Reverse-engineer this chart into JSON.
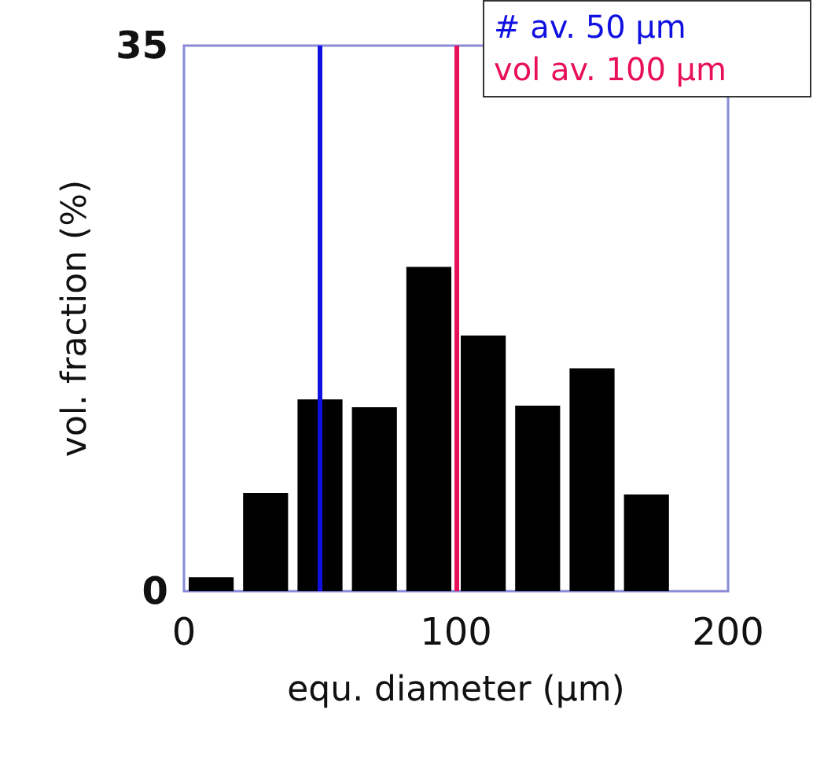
{
  "chart_data": {
    "type": "histogram",
    "xlabel": "equ. diameter (µm)",
    "ylabel": "vol. fraction (%)",
    "bins": [
      0,
      20,
      40,
      60,
      80,
      100,
      120,
      140,
      160,
      180
    ],
    "values": [
      0.9,
      6.3,
      12.3,
      11.8,
      20.8,
      16.4,
      11.9,
      14.3,
      6.2
    ],
    "color": "#000000",
    "xlim": [
      0,
      200
    ],
    "xticks": [
      0,
      100,
      200
    ],
    "ylim": [
      0,
      35
    ],
    "yticks": [
      0,
      35
    ],
    "grid": false,
    "ref_lines": [
      {
        "axis": "x",
        "value": 50,
        "label": "# av. 50 µm",
        "color": "#1010e0"
      },
      {
        "axis": "x",
        "value": 100,
        "label": "vol av. 100 µm",
        "color": "#e8105a"
      }
    ]
  }
}
